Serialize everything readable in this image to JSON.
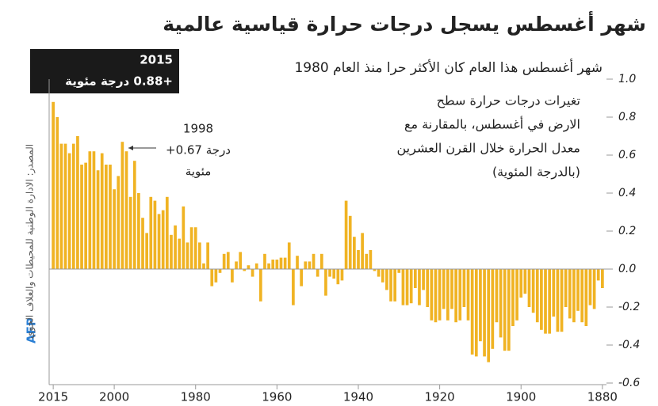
{
  "chart_data": {
    "type": "bar",
    "title": "شهر أغسطس يسجل درجات حرارة قياسية عالمية",
    "subtitle": "شهر أغسطس هذا العام كان الأكثر حرا منذ العام 1980",
    "y_label": [
      "تغيرات درجات حرارة سطح",
      "الارض في أغسطس، بالمقارنة مع",
      "معدل الحرارة خلال القرن العشرين",
      "(بالدرجة المئوية)"
    ],
    "annotations": [
      {
        "lines": [
          "2015",
          "+0.88 درجة مئوية"
        ]
      },
      {
        "lines": [
          "1998",
          "+0.67 درجة",
          "مئوية"
        ]
      }
    ],
    "source": "المصدر: الادارة الوطنية للمحيطات والغلاف الجوي",
    "logo": "AFP",
    "color": "#f0b323",
    "x": [
      2015,
      2014,
      2013,
      2012,
      2011,
      2010,
      2009,
      2008,
      2007,
      2006,
      2005,
      2004,
      2003,
      2002,
      2001,
      2000,
      1999,
      1998,
      1997,
      1996,
      1995,
      1994,
      1993,
      1992,
      1991,
      1990,
      1989,
      1988,
      1987,
      1986,
      1985,
      1984,
      1983,
      1982,
      1981,
      1980,
      1979,
      1978,
      1977,
      1976,
      1975,
      1974,
      1973,
      1972,
      1971,
      1970,
      1969,
      1968,
      1967,
      1966,
      1965,
      1964,
      1963,
      1962,
      1961,
      1960,
      1959,
      1958,
      1957,
      1956,
      1955,
      1954,
      1953,
      1952,
      1951,
      1950,
      1949,
      1948,
      1947,
      1946,
      1945,
      1944,
      1943,
      1942,
      1941,
      1940,
      1939,
      1938,
      1937,
      1936,
      1935,
      1934,
      1933,
      1932,
      1931,
      1930,
      1929,
      1928,
      1927,
      1926,
      1925,
      1924,
      1923,
      1922,
      1921,
      1920,
      1919,
      1918,
      1917,
      1916,
      1915,
      1914,
      1913,
      1912,
      1911,
      1910,
      1909,
      1908,
      1907,
      1906,
      1905,
      1904,
      1903,
      1902,
      1901,
      1900,
      1899,
      1898,
      1897,
      1896,
      1895,
      1894,
      1893,
      1892,
      1891,
      1890,
      1889,
      1888,
      1887,
      1886,
      1885,
      1884,
      1883,
      1882,
      1881,
      1880
    ],
    "values": [
      0.88,
      0.8,
      0.66,
      0.66,
      0.61,
      0.66,
      0.7,
      0.55,
      0.56,
      0.62,
      0.62,
      0.52,
      0.61,
      0.55,
      0.55,
      0.42,
      0.49,
      0.67,
      0.62,
      0.38,
      0.57,
      0.4,
      0.27,
      0.19,
      0.38,
      0.36,
      0.29,
      0.31,
      0.38,
      0.18,
      0.23,
      0.16,
      0.33,
      0.14,
      0.22,
      0.22,
      0.14,
      0.03,
      0.14,
      -0.09,
      -0.07,
      -0.02,
      0.08,
      0.09,
      -0.07,
      0.04,
      0.09,
      -0.01,
      0.02,
      -0.04,
      0.03,
      -0.17,
      0.08,
      0.03,
      0.05,
      0.05,
      0.06,
      0.06,
      0.14,
      -0.19,
      0.07,
      -0.09,
      0.04,
      0.04,
      0.08,
      -0.04,
      0.08,
      -0.14,
      -0.04,
      -0.05,
      -0.08,
      -0.06,
      0.36,
      0.28,
      0.17,
      0.1,
      0.19,
      0.08,
      0.1,
      -0.01,
      -0.04,
      -0.07,
      -0.11,
      -0.17,
      -0.17,
      -0.02,
      -0.19,
      -0.19,
      -0.18,
      -0.1,
      -0.19,
      -0.11,
      -0.2,
      -0.27,
      -0.28,
      -0.27,
      -0.21,
      -0.27,
      -0.21,
      -0.28,
      -0.27,
      -0.2,
      -0.27,
      -0.45,
      -0.46,
      -0.38,
      -0.46,
      -0.49,
      -0.42,
      -0.28,
      -0.36,
      -0.43,
      -0.43,
      -0.3,
      -0.27,
      -0.15,
      -0.13,
      -0.2,
      -0.23,
      -0.28,
      -0.32,
      -0.34,
      -0.34,
      -0.25,
      -0.33,
      -0.33,
      -0.2,
      -0.26,
      -0.28,
      -0.22,
      -0.28,
      -0.3,
      -0.19,
      -0.21,
      -0.06,
      -0.1
    ],
    "xlim": [
      2016,
      1879
    ],
    "xticks": [
      2015,
      2000,
      1980,
      1960,
      1940,
      1920,
      1900,
      1880
    ],
    "ylim": [
      -0.6,
      1.0
    ],
    "yticks": [
      {
        "value": 1,
        "label": "1.0"
      },
      0.8,
      0.6,
      0.4,
      0.2,
      {
        "value": 0,
        "label": "0.0"
      },
      -0.2,
      -0.4,
      -0.6
    ],
    "grid": false
  }
}
